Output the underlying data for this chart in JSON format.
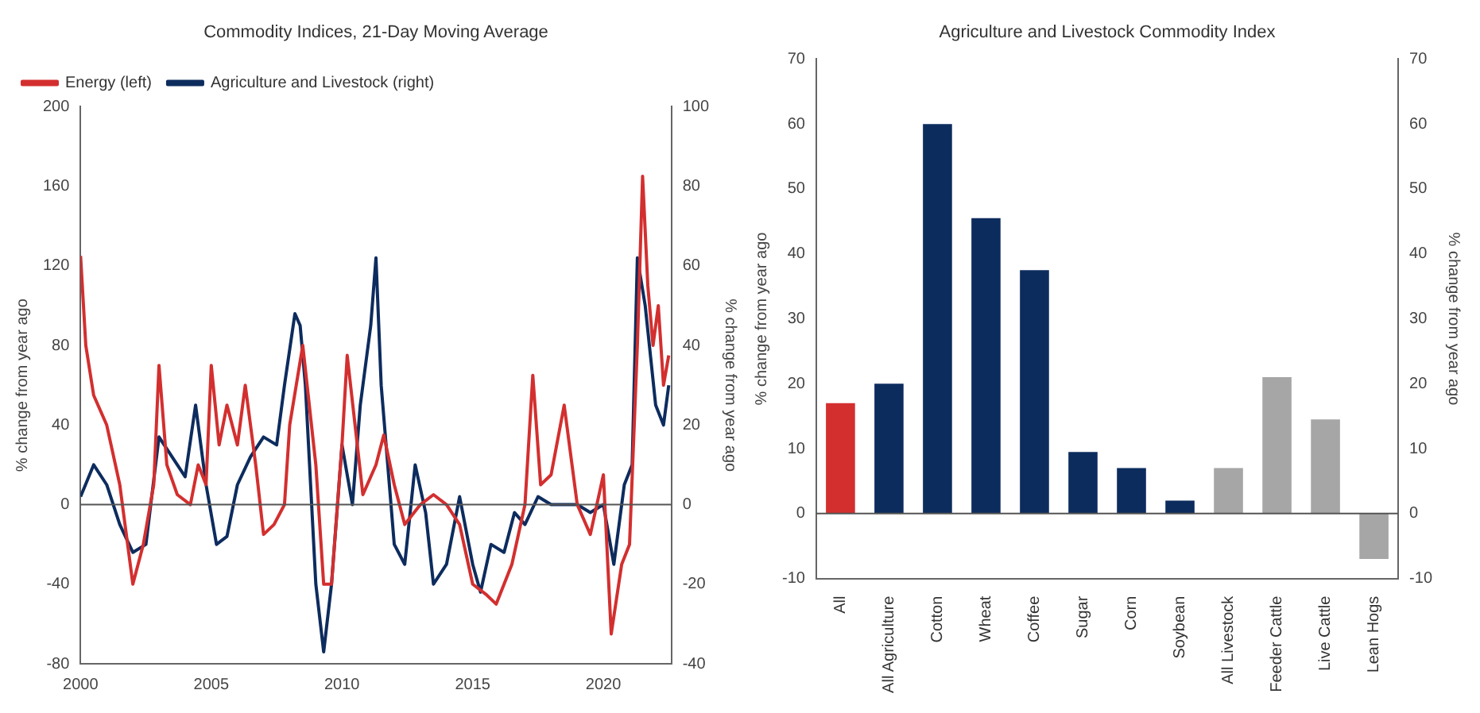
{
  "chart_data": [
    {
      "type": "line",
      "title": "Commodity Indices, 21-Day Moving Average",
      "ylabel": "% change from year ago",
      "y2label": "% change from year ago",
      "xlim": [
        2000,
        2022.6
      ],
      "xticks": [
        2000,
        2005,
        2010,
        2015,
        2020
      ],
      "ylim": [
        -80,
        200
      ],
      "yticks": [
        -80,
        -40,
        0,
        40,
        80,
        120,
        160,
        200
      ],
      "y2lim": [
        -40,
        100
      ],
      "y2ticks": [
        -40,
        -20,
        0,
        20,
        40,
        60,
        80,
        100
      ],
      "legend": "top left",
      "grid": false,
      "ref_lines": [
        {
          "axis": "y",
          "value": 0,
          "color": "#555555"
        }
      ],
      "series": [
        {
          "name": "Energy (left)",
          "color": "#d32f2f",
          "x": [
            2000,
            2000.2,
            2000.5,
            2001,
            2001.5,
            2002,
            2002.4,
            2002.8,
            2003,
            2003.3,
            2003.7,
            2004.2,
            2004.5,
            2004.8,
            2005,
            2005.3,
            2005.6,
            2006,
            2006.3,
            2006.7,
            2007,
            2007.4,
            2007.8,
            2008,
            2008.5,
            2009,
            2009.3,
            2009.6,
            2010,
            2010.2,
            2010.5,
            2010.8,
            2011.3,
            2011.6,
            2012,
            2012.4,
            2013,
            2013.5,
            2014,
            2014.5,
            2015,
            2015.5,
            2015.9,
            2016.5,
            2017,
            2017.3,
            2017.6,
            2018,
            2018.5,
            2019,
            2019.5,
            2020,
            2020.3,
            2020.7,
            2021,
            2021.3,
            2021.5,
            2021.7,
            2021.9,
            2022.1,
            2022.3,
            2022.5
          ],
          "values": [
            125,
            80,
            55,
            40,
            10,
            -40,
            -20,
            10,
            70,
            20,
            5,
            0,
            20,
            10,
            70,
            30,
            50,
            30,
            60,
            20,
            -15,
            -10,
            0,
            40,
            80,
            20,
            -40,
            -40,
            30,
            75,
            40,
            5,
            20,
            35,
            10,
            -10,
            0,
            5,
            0,
            -10,
            -40,
            -45,
            -50,
            -30,
            0,
            65,
            10,
            15,
            50,
            0,
            -15,
            15,
            -65,
            -30,
            -20,
            80,
            165,
            110,
            80,
            100,
            60,
            75
          ]
        },
        {
          "name": "Agriculture and Livestock (right)",
          "color": "#0d2c5e",
          "axis": "y2",
          "x": [
            2000,
            2000.5,
            2001,
            2001.5,
            2002,
            2002.5,
            2003,
            2003.5,
            2004,
            2004.4,
            2004.8,
            2005.2,
            2005.6,
            2006,
            2006.5,
            2007,
            2007.5,
            2007.8,
            2008.2,
            2008.4,
            2008.6,
            2009,
            2009.3,
            2009.6,
            2010,
            2010.4,
            2010.7,
            2011.1,
            2011.3,
            2011.5,
            2012,
            2012.4,
            2012.8,
            2013.2,
            2013.5,
            2014,
            2014.5,
            2015,
            2015.3,
            2015.7,
            2016.2,
            2016.6,
            2017,
            2017.5,
            2018,
            2018.5,
            2019,
            2019.5,
            2020,
            2020.4,
            2020.8,
            2021.1,
            2021.3,
            2021.6,
            2022,
            2022.3,
            2022.5
          ],
          "values": [
            2,
            10,
            5,
            -5,
            -12,
            -10,
            17,
            12,
            7,
            25,
            5,
            -10,
            -8,
            5,
            12,
            17,
            15,
            30,
            48,
            45,
            30,
            -20,
            -37,
            -20,
            15,
            0,
            25,
            45,
            62,
            30,
            -10,
            -15,
            10,
            -2,
            -20,
            -15,
            2,
            -15,
            -22,
            -10,
            -12,
            -2,
            -5,
            2,
            0,
            0,
            0,
            -2,
            0,
            -15,
            5,
            10,
            62,
            50,
            25,
            20,
            30
          ]
        }
      ]
    },
    {
      "type": "bar",
      "title": "Agriculture and Livestock Commodity Index",
      "ylabel": "% change from year ago",
      "y2label": "% change from year ago",
      "categories": [
        "All",
        "All Agriculture",
        "Cotton",
        "Wheat",
        "Coffee",
        "Sugar",
        "Corn",
        "Soybean",
        "All Livestock",
        "Feeder Cattle",
        "Live Cattle",
        "Lean Hogs"
      ],
      "values": [
        17,
        20,
        60,
        45.5,
        37.5,
        9.5,
        7,
        2,
        7,
        21,
        14.5,
        -7
      ],
      "colors": [
        "#d32f2f",
        "#0d2c5e",
        "#0d2c5e",
        "#0d2c5e",
        "#0d2c5e",
        "#0d2c5e",
        "#0d2c5e",
        "#0d2c5e",
        "#a6a6a6",
        "#a6a6a6",
        "#a6a6a6",
        "#a6a6a6"
      ],
      "ylim": [
        -10,
        70
      ],
      "yticks": [
        -10,
        0,
        10,
        20,
        30,
        40,
        50,
        60,
        70
      ],
      "y2lim": [
        -10,
        70
      ],
      "y2ticks": [
        -10,
        0,
        10,
        20,
        30,
        40,
        50,
        60,
        70
      ],
      "grid": false,
      "legend": false,
      "ref_lines": [
        {
          "axis": "y",
          "value": 0,
          "color": "#555555"
        }
      ]
    }
  ]
}
